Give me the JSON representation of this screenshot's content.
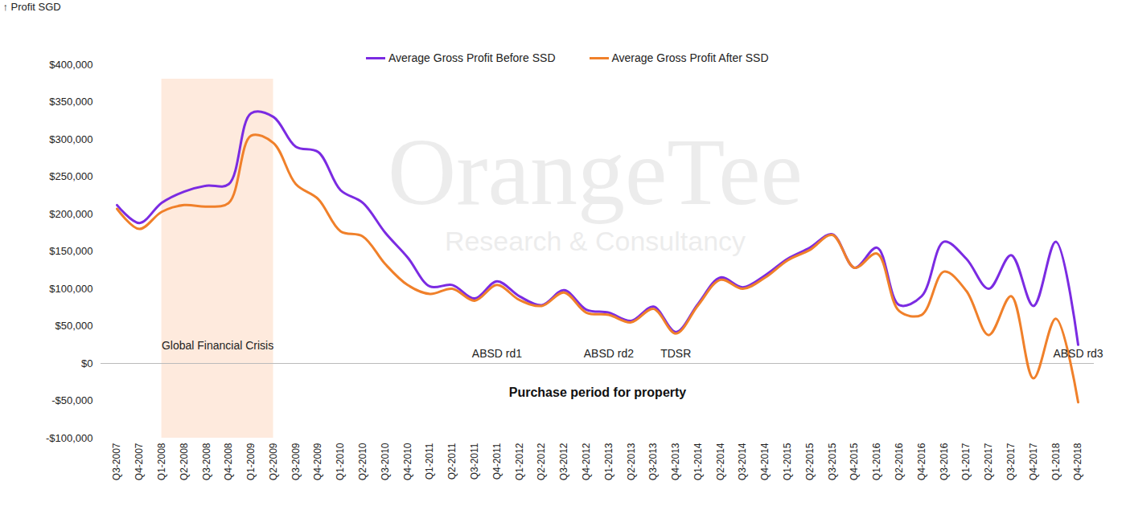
{
  "chart_data": {
    "type": "line",
    "y_label": "Profit SGD",
    "x_label": "Purchase period for property",
    "watermark": {
      "logo": "OrangeTee",
      "text": "Research & Consultancy"
    },
    "categories": [
      "Q3-2007",
      "Q4-2007",
      "Q1-2008",
      "Q2-2008",
      "Q3-2008",
      "Q4-2008",
      "Q1-2009",
      "Q2-2009",
      "Q3-2009",
      "Q4-2009",
      "Q1-2010",
      "Q2-2010",
      "Q3-2010",
      "Q4-2010",
      "Q1-2011",
      "Q2-2011",
      "Q3-2011",
      "Q4-2011",
      "Q1-2012",
      "Q2-2012",
      "Q3-2012",
      "Q4-2012",
      "Q1-2013",
      "Q2-2013",
      "Q3-2013",
      "Q4-2013",
      "Q1-2014",
      "Q2-2014",
      "Q3-2014",
      "Q4-2014",
      "Q1-2015",
      "Q2-2015",
      "Q3-2015",
      "Q4-2015",
      "Q1-2016",
      "Q2-2016",
      "Q4-2016",
      "Q3-2016",
      "Q1-2017",
      "Q2-2017",
      "Q3-2017",
      "Q4-2017",
      "Q1-2018",
      "Q4-2018"
    ],
    "series": [
      {
        "name": "Average Gross Profit Before SSD",
        "color": "#7b2be2",
        "values": [
          212000,
          188000,
          215000,
          230000,
          238000,
          240000,
          335000,
          330000,
          290000,
          283000,
          232000,
          215000,
          175000,
          142000,
          103000,
          105000,
          87000,
          110000,
          90000,
          78000,
          98000,
          72000,
          68000,
          57000,
          76000,
          42000,
          80000,
          115000,
          102000,
          118000,
          140000,
          155000,
          173000,
          128000,
          155000,
          78000,
          90000,
          163000,
          140000,
          100000,
          145000,
          77000,
          163000,
          25000
        ]
      },
      {
        "name": "Average Gross Profit After SSD",
        "color": "#f0802a",
        "values": [
          207000,
          180000,
          203000,
          212000,
          210000,
          215000,
          305000,
          295000,
          240000,
          220000,
          177000,
          170000,
          133000,
          105000,
          93000,
          100000,
          84000,
          105000,
          85000,
          77000,
          95000,
          68000,
          65000,
          55000,
          73000,
          40000,
          78000,
          112000,
          100000,
          115000,
          138000,
          152000,
          172000,
          128000,
          147000,
          70000,
          65000,
          123000,
          97000,
          38000,
          90000,
          -20000,
          60000,
          -52000
        ]
      }
    ],
    "ylim": [
      -100000,
      400000
    ],
    "yticks": [
      {
        "value": -100000,
        "label": "-$100,000"
      },
      {
        "value": -50000,
        "label": "-$50,000"
      },
      {
        "value": 0,
        "label": "$0"
      },
      {
        "value": 50000,
        "label": "$50,000"
      },
      {
        "value": 100000,
        "label": "$100,000"
      },
      {
        "value": 150000,
        "label": "$150,000"
      },
      {
        "value": 200000,
        "label": "$200,000"
      },
      {
        "value": 250000,
        "label": "$250,000"
      },
      {
        "value": 300000,
        "label": "$300,000"
      },
      {
        "value": 350000,
        "label": "$350,000"
      },
      {
        "value": 400000,
        "label": "$400,000"
      }
    ],
    "grid": false,
    "legend": "top",
    "annotations": [
      {
        "text": "Global Financial Crisis",
        "from": "Q1-2008",
        "to": "Q2-2009",
        "color": "#fde3d2"
      },
      {
        "text": "ABSD rd1",
        "x": "Q4-2011"
      },
      {
        "text": "ABSD rd2",
        "x": "Q1-2013"
      },
      {
        "text": "TDSR",
        "x": "Q4-2013"
      },
      {
        "text": "ABSD rd3",
        "x": "Q4-2018"
      }
    ]
  }
}
